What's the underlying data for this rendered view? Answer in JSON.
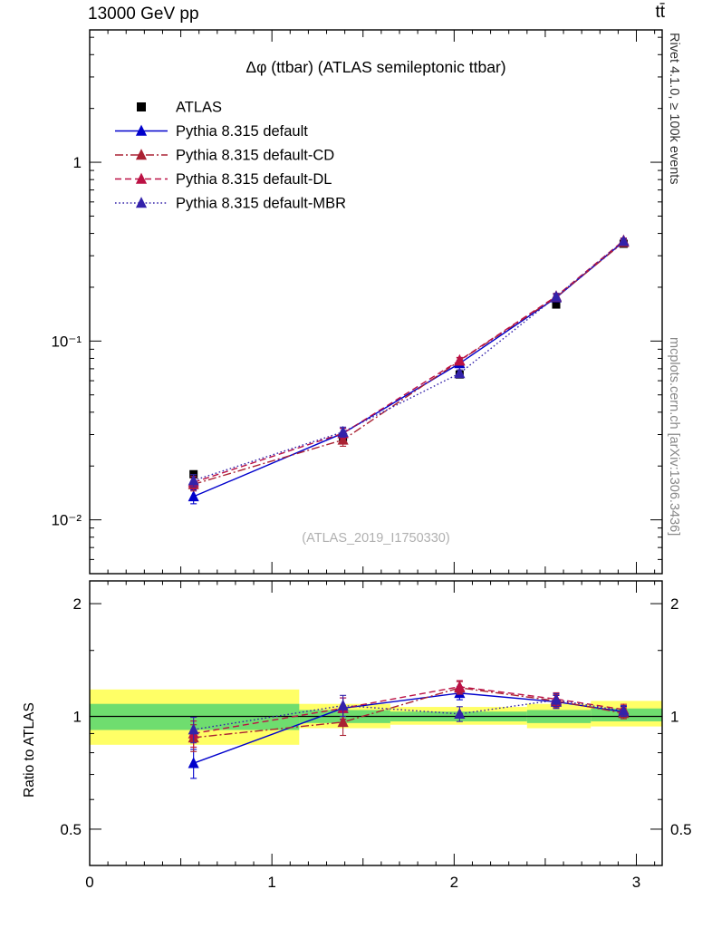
{
  "header": {
    "left": "13000 GeV pp",
    "right": "tt̄"
  },
  "side": {
    "top": "Rivet 4.1.0, ≥ 100k events",
    "bottom": "mcplots.cern.ch [arXiv:1306.3436]"
  },
  "chart_data": {
    "type": "line",
    "title": "Δφ (ttbar) (ATLAS semileptonic ttbar)",
    "watermark": "(ATLAS_2019_I1750330)",
    "xlim": [
      0,
      3.1416
    ],
    "xticks": [
      0,
      1,
      2,
      3
    ],
    "x": [
      0.57,
      1.39,
      2.03,
      2.56,
      2.93
    ],
    "main": {
      "yscale": "log",
      "ylim": [
        0.005,
        5.5
      ],
      "yticks": [
        {
          "v": 0.01,
          "label": "10⁻²"
        },
        {
          "v": 0.1,
          "label": "10⁻¹"
        },
        {
          "v": 1,
          "label": "1"
        }
      ]
    },
    "ratio": {
      "yscale": "log",
      "ylabel": "Ratio to ATLAS",
      "ylim": [
        0.4,
        2.3
      ],
      "refline": 1,
      "yticks": [
        {
          "v": 0.5,
          "label": "0.5"
        },
        {
          "v": 1,
          "label": "1"
        },
        {
          "v": 2,
          "label": "2"
        }
      ],
      "minor_ticks": [
        0.6,
        0.7,
        0.8,
        0.9,
        1.5
      ],
      "bands": [
        {
          "xlo": 0.0,
          "xhi": 1.15,
          "yellow": [
            0.84,
            1.18
          ],
          "green": [
            0.92,
            1.08
          ]
        },
        {
          "xlo": 1.15,
          "xhi": 1.65,
          "yellow": [
            0.93,
            1.08
          ],
          "green": [
            0.96,
            1.04
          ]
        },
        {
          "xlo": 1.65,
          "xhi": 2.4,
          "yellow": [
            0.95,
            1.06
          ],
          "green": [
            0.97,
            1.03
          ]
        },
        {
          "xlo": 2.4,
          "xhi": 2.75,
          "yellow": [
            0.93,
            1.08
          ],
          "green": [
            0.96,
            1.04
          ]
        },
        {
          "xlo": 2.75,
          "xhi": 3.1416,
          "yellow": [
            0.94,
            1.1
          ],
          "green": [
            0.97,
            1.05
          ]
        }
      ]
    },
    "series": [
      {
        "name": "ATLAS",
        "color": "#000000",
        "marker": "square",
        "line": "none",
        "values": [
          0.018,
          0.029,
          0.065,
          0.16,
          0.35
        ],
        "yerr": [
          0.0005,
          0.0008,
          0.0015,
          0.004,
          0.008
        ]
      },
      {
        "name": "Pythia 8.315 default",
        "color": "#0000cc",
        "marker": "triangle",
        "line": "solid",
        "values": [
          0.0135,
          0.0305,
          0.075,
          0.175,
          0.36
        ],
        "yerr": [
          0.0012,
          0.002,
          0.003,
          0.007,
          0.012
        ]
      },
      {
        "name": "Pythia 8.315 default-CD",
        "color": "#aa2233",
        "marker": "triangle",
        "line": "dashdot",
        "values": [
          0.0158,
          0.028,
          0.0775,
          0.176,
          0.357
        ],
        "yerr": [
          0.0013,
          0.0022,
          0.003,
          0.007,
          0.012
        ]
      },
      {
        "name": "Pythia 8.315 default-DL",
        "color": "#bb1144",
        "marker": "triangle",
        "line": "dashed",
        "values": [
          0.0162,
          0.0305,
          0.078,
          0.178,
          0.365
        ],
        "yerr": [
          0.0013,
          0.002,
          0.003,
          0.007,
          0.012
        ]
      },
      {
        "name": "Pythia 8.315 default-MBR",
        "color": "#3322aa",
        "marker": "triangle",
        "line": "dotted",
        "values": [
          0.0166,
          0.031,
          0.066,
          0.177,
          0.362
        ],
        "yerr": [
          0.0013,
          0.002,
          0.003,
          0.007,
          0.012
        ]
      }
    ]
  }
}
